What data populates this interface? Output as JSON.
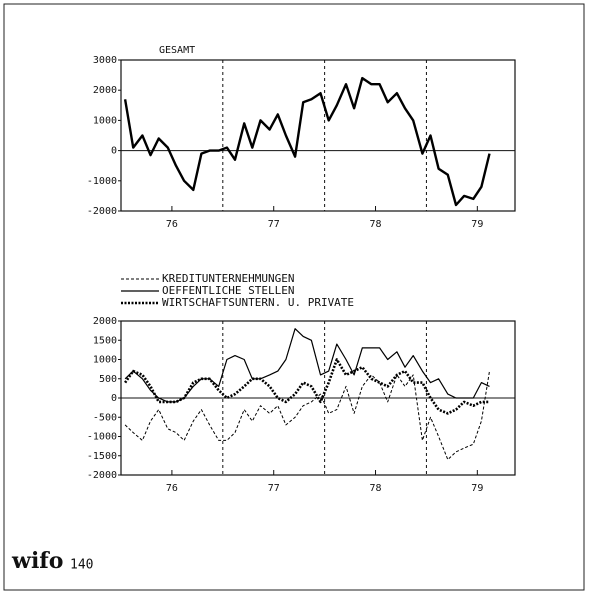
{
  "chart_data": [
    {
      "type": "line",
      "title": "GESAMT",
      "x": [
        1976.04,
        1976.12,
        1976.21,
        1976.29,
        1976.37,
        1976.46,
        1976.54,
        1976.62,
        1976.71,
        1976.79,
        1976.87,
        1976.96,
        1977.04,
        1977.12,
        1977.21,
        1977.29,
        1977.37,
        1977.46,
        1977.54,
        1977.62,
        1977.71,
        1977.79,
        1977.87,
        1977.96,
        1978.04,
        1978.12,
        1978.21,
        1978.29,
        1978.37,
        1978.46,
        1978.54,
        1978.62,
        1978.71,
        1978.79,
        1978.87,
        1978.96,
        1979.04,
        1979.12,
        1979.21,
        1979.29,
        1979.37,
        1979.46,
        1979.54,
        1979.62
      ],
      "series": [
        {
          "name": "GESAMT",
          "color": "#000000",
          "style": "solid",
          "width": 2.4,
          "values": [
            1700,
            100,
            500,
            -150,
            400,
            100,
            -500,
            -1000,
            -1300,
            -100,
            0,
            0,
            100,
            -300,
            900,
            100,
            1000,
            700,
            1200,
            500,
            -200,
            1600,
            1700,
            1900,
            1000,
            1500,
            2200,
            1400,
            2400,
            2200,
            2200,
            1600,
            1900,
            1400,
            1000,
            -100,
            500,
            -600,
            -800,
            -1800,
            -1500,
            -1600,
            -1200,
            -100
          ]
        }
      ],
      "xlim": [
        1976,
        1979.87
      ],
      "xticks": [
        {
          "value": 1976.5,
          "label": "76"
        },
        {
          "value": 1977.5,
          "label": "77"
        },
        {
          "value": 1978.5,
          "label": "78"
        },
        {
          "value": 1979.5,
          "label": "79"
        }
      ],
      "year_lines": [
        1977,
        1978,
        1979
      ],
      "ylim": [
        -2000,
        3000
      ],
      "yticks": [
        3000,
        2000,
        1000,
        0,
        -1000,
        -2000
      ]
    },
    {
      "type": "line",
      "x": [
        1976.04,
        1976.12,
        1976.21,
        1976.29,
        1976.37,
        1976.46,
        1976.54,
        1976.62,
        1976.71,
        1976.79,
        1976.87,
        1976.96,
        1977.04,
        1977.12,
        1977.21,
        1977.29,
        1977.37,
        1977.46,
        1977.54,
        1977.62,
        1977.71,
        1977.79,
        1977.87,
        1977.96,
        1978.04,
        1978.12,
        1978.21,
        1978.29,
        1978.37,
        1978.46,
        1978.54,
        1978.62,
        1978.71,
        1978.79,
        1978.87,
        1978.96,
        1979.04,
        1979.12,
        1979.21,
        1979.29,
        1979.37,
        1979.46,
        1979.54,
        1979.62
      ],
      "series": [
        {
          "name": "KREDITUNTERNEHMUNGEN",
          "color": "#000000",
          "style": "dashed",
          "width": 1,
          "values": [
            -700,
            -900,
            -1100,
            -600,
            -300,
            -800,
            -900,
            -1100,
            -600,
            -300,
            -700,
            -1100,
            -1100,
            -900,
            -300,
            -600,
            -200,
            -400,
            -200,
            -700,
            -500,
            -200,
            -100,
            100,
            -400,
            -300,
            300,
            -400,
            300,
            600,
            400,
            -100,
            600,
            300,
            600,
            -1100,
            -500,
            -1000,
            -1600,
            -1400,
            -1300,
            -1200,
            -600,
            700
          ]
        },
        {
          "name": "OEFFENTLICHE STELLEN",
          "color": "#000000",
          "style": "solid",
          "width": 1.2,
          "values": [
            500,
            700,
            500,
            200,
            0,
            -100,
            -100,
            0,
            300,
            500,
            500,
            300,
            1000,
            1100,
            1000,
            500,
            500,
            600,
            700,
            1000,
            1800,
            1600,
            1500,
            600,
            700,
            1400,
            1000,
            600,
            1300,
            1300,
            1300,
            1000,
            1200,
            800,
            1100,
            700,
            400,
            500,
            100,
            0,
            0,
            0,
            400,
            300
          ]
        },
        {
          "name": "WIRTSCHAFTSUNTERN. U. PRIVATE",
          "color": "#000000",
          "style": "dotted",
          "width": 2.6,
          "values": [
            400,
            700,
            600,
            300,
            -100,
            -100,
            -100,
            0,
            400,
            500,
            500,
            200,
            0,
            100,
            300,
            500,
            500,
            300,
            0,
            -100,
            100,
            400,
            300,
            -100,
            400,
            1000,
            600,
            700,
            800,
            500,
            400,
            300,
            600,
            700,
            400,
            400,
            0,
            -300,
            -400,
            -300,
            -100,
            -200,
            -100,
            -100
          ]
        }
      ],
      "xlim": [
        1976,
        1979.87
      ],
      "xticks": [
        {
          "value": 1976.5,
          "label": "76"
        },
        {
          "value": 1977.5,
          "label": "77"
        },
        {
          "value": 1978.5,
          "label": "78"
        },
        {
          "value": 1979.5,
          "label": "79"
        }
      ],
      "year_lines": [
        1977,
        1978,
        1979
      ],
      "ylim": [
        -2000,
        2000
      ],
      "yticks": [
        2000,
        1500,
        1000,
        500,
        0,
        -500,
        -1000,
        -1500,
        -2000
      ],
      "legend": "top-left"
    }
  ],
  "footer": {
    "logo": "wifo",
    "page": "140"
  }
}
